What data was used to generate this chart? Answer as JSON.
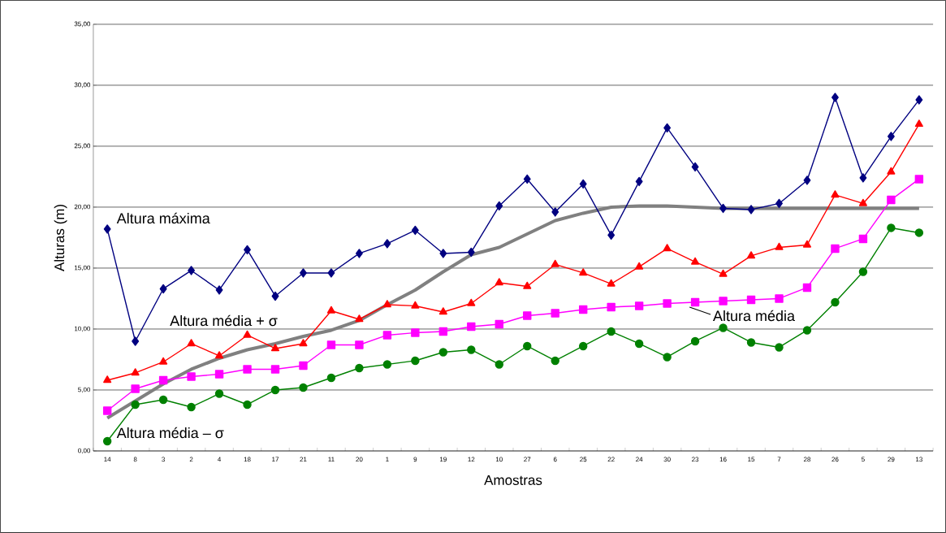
{
  "chart_data": {
    "type": "line",
    "xlabel": "Amostras",
    "ylabel": "Alturas (m)",
    "categories": [
      "14",
      "8",
      "3",
      "2",
      "4",
      "18",
      "17",
      "21",
      "11",
      "20",
      "1",
      "9",
      "19",
      "12",
      "10",
      "27",
      "6",
      "25",
      "22",
      "24",
      "30",
      "23",
      "16",
      "15",
      "7",
      "28",
      "26",
      "5",
      "29",
      "13"
    ],
    "series": [
      {
        "name": "Altura máxima",
        "color": "#000080",
        "marker": "diamond",
        "values": [
          18.2,
          9.0,
          13.3,
          14.8,
          13.2,
          16.5,
          12.7,
          14.6,
          14.6,
          16.2,
          17.0,
          18.1,
          16.2,
          16.3,
          20.1,
          22.3,
          19.6,
          21.9,
          17.7,
          22.1,
          26.5,
          23.3,
          19.9,
          19.8,
          20.3,
          22.2,
          29.0,
          22.4,
          25.8,
          28.8
        ]
      },
      {
        "name": "Altura média + σ",
        "color": "#ff0000",
        "marker": "triangle",
        "values": [
          5.8,
          6.4,
          7.3,
          8.8,
          7.8,
          9.5,
          8.4,
          8.8,
          11.5,
          10.8,
          12.0,
          11.9,
          11.4,
          12.1,
          13.8,
          13.5,
          15.3,
          14.6,
          13.7,
          15.1,
          16.6,
          15.5,
          14.5,
          16.0,
          16.7,
          16.9,
          21.0,
          20.3,
          22.9,
          26.8
        ]
      },
      {
        "name": "Altura média",
        "color": "#ff00ff",
        "marker": "square",
        "values": [
          3.3,
          5.1,
          5.8,
          6.1,
          6.3,
          6.7,
          6.7,
          7.0,
          8.7,
          8.7,
          9.5,
          9.7,
          9.8,
          10.2,
          10.4,
          11.1,
          11.3,
          11.6,
          11.8,
          11.9,
          12.1,
          12.2,
          12.3,
          12.4,
          12.5,
          13.4,
          16.6,
          17.4,
          20.6,
          22.3
        ]
      },
      {
        "name": "Altura média – σ",
        "color": "#008000",
        "marker": "circle",
        "values": [
          0.8,
          3.8,
          4.2,
          3.6,
          4.7,
          3.8,
          5.0,
          5.2,
          6.0,
          6.8,
          7.1,
          7.4,
          8.1,
          8.3,
          7.1,
          8.6,
          7.4,
          8.6,
          9.8,
          8.8,
          7.7,
          9.0,
          10.1,
          8.9,
          8.5,
          9.9,
          12.2,
          14.7,
          18.3,
          17.9
        ]
      },
      {
        "color": "#808080",
        "marker": "none",
        "values": [
          2.7,
          4.1,
          5.5,
          6.7,
          7.6,
          8.3,
          8.8,
          9.4,
          9.9,
          10.7,
          12.0,
          13.2,
          14.7,
          16.1,
          16.7,
          17.8,
          18.9,
          19.5,
          20.0,
          20.1,
          20.1,
          20.0,
          19.9,
          19.9,
          19.9,
          19.9,
          19.9,
          19.9,
          19.9,
          19.9
        ]
      }
    ],
    "ylim": [
      0,
      35
    ],
    "yticks": [
      {
        "value": 0,
        "label": "0,00"
      },
      {
        "value": 5,
        "label": "5,00"
      },
      {
        "value": 10,
        "label": "10,00"
      },
      {
        "value": 15,
        "label": "15,00"
      },
      {
        "value": 20,
        "label": "20,00"
      },
      {
        "value": 25,
        "label": "25,00"
      },
      {
        "value": 30,
        "label": "30,00"
      },
      {
        "value": 35,
        "label": "35,00"
      }
    ],
    "grid": "y",
    "line_style": "solid"
  }
}
